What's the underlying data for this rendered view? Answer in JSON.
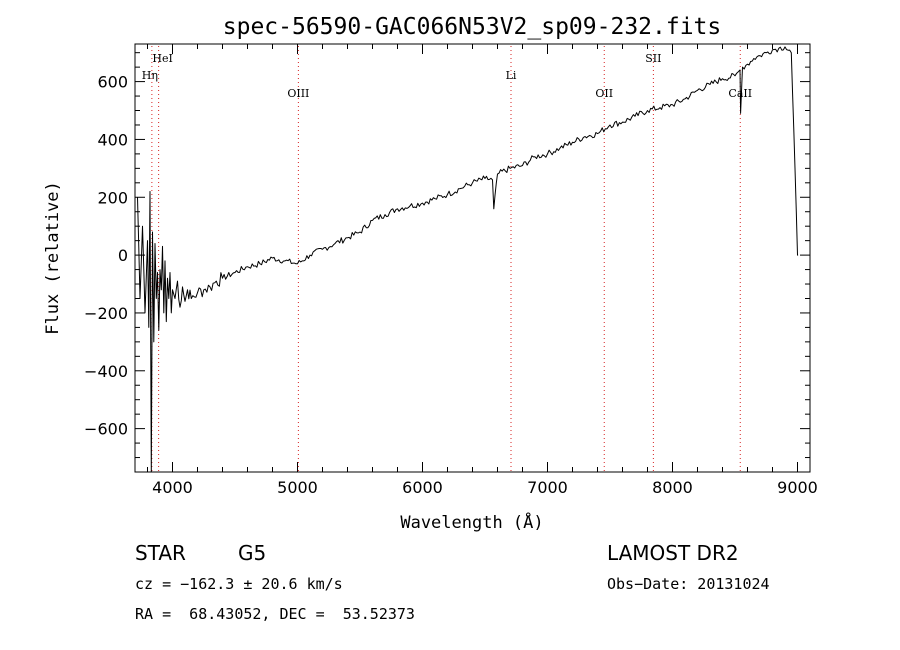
{
  "chart_data": {
    "type": "line",
    "title": "spec-56590-GAC066N53V2_sp09-232.fits",
    "xlabel": "Wavelength (Å)",
    "ylabel": "Flux (relative)",
    "xlim": [
      3700,
      9100
    ],
    "ylim": [
      -750,
      730
    ],
    "x_ticks": [
      4000,
      5000,
      6000,
      7000,
      8000,
      9000
    ],
    "y_ticks": [
      -600,
      -400,
      -200,
      0,
      200,
      400,
      600
    ],
    "grid": false,
    "series": [
      {
        "x": [
          3720,
          3740,
          3760,
          3780,
          3800,
          3810,
          3820,
          3830,
          3840,
          3850,
          3860,
          3870,
          3880,
          3890,
          3900,
          3910,
          3920,
          3930,
          3940,
          3950,
          3960,
          3970,
          3980,
          3990,
          4000,
          4020,
          4040,
          4060,
          4080,
          4100,
          4120,
          4150,
          4200,
          4250,
          4300,
          4350,
          4400,
          4500,
          4600,
          4700,
          4800,
          4900,
          5000,
          5100,
          5200,
          5300,
          5400,
          5500,
          5600,
          5700,
          5800,
          5900,
          6000,
          6100,
          6200,
          6300,
          6400,
          6500,
          6560,
          6570,
          6600,
          6700,
          6800,
          6900,
          7000,
          7100,
          7200,
          7300,
          7400,
          7500,
          7600,
          7700,
          7800,
          7900,
          8000,
          8100,
          8200,
          8300,
          8400,
          8500,
          8540,
          8545,
          8560,
          8600,
          8650,
          8700,
          8750,
          8800,
          8850,
          8900,
          8950,
          8980,
          9000,
          9005
        ],
        "y": [
          200,
          -150,
          100,
          -200,
          50,
          -250,
          220,
          -750,
          80,
          -300,
          40,
          -150,
          -60,
          -260,
          -50,
          -120,
          30,
          -200,
          -20,
          -230,
          -80,
          -150,
          -60,
          -200,
          -120,
          -150,
          -90,
          -180,
          -110,
          -160,
          -120,
          -150,
          -130,
          -120,
          -110,
          -90,
          -80,
          -60,
          -40,
          -30,
          -10,
          -20,
          -30,
          0,
          20,
          40,
          60,
          80,
          120,
          140,
          160,
          170,
          180,
          195,
          210,
          230,
          250,
          265,
          260,
          160,
          280,
          300,
          310,
          340,
          350,
          370,
          390,
          410,
          420,
          450,
          460,
          480,
          500,
          510,
          520,
          540,
          570,
          590,
          610,
          620,
          640,
          490,
          650,
          660,
          680,
          690,
          700,
          710,
          715,
          720,
          700,
          300,
          0,
          0
        ]
      }
    ],
    "lines": [
      {
        "label": "HeI",
        "x": 3889
      },
      {
        "label": "Hη",
        "x": 3835
      },
      {
        "label": "OIII",
        "x": 5007
      },
      {
        "label": "Li",
        "x": 6708
      },
      {
        "label": "OII",
        "x": 7454
      },
      {
        "label": "SII",
        "x": 7847
      },
      {
        "label": "CaII",
        "x": 8542
      }
    ]
  },
  "info": {
    "class_label": "STAR",
    "subclass": "G5",
    "survey": "LAMOST DR2",
    "cz_line": "cz = −162.3 ± 20.6 km/s",
    "obs_date": "Obs−Date: 20131024",
    "radec": "RA =  68.43052, DEC =  53.52373"
  }
}
